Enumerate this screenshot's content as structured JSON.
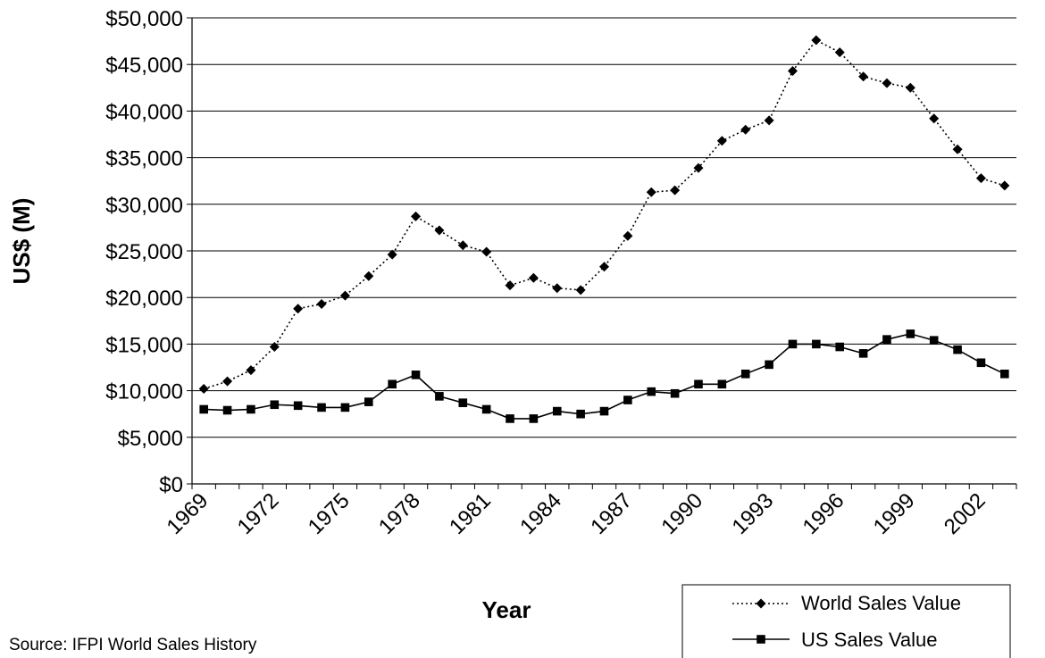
{
  "chart_data": {
    "type": "line",
    "title": "",
    "xlabel": "Year",
    "ylabel": "US$ (M)",
    "ylim": [
      0,
      50000
    ],
    "y_tick_step": 5000,
    "y_tick_labels": [
      "$0",
      "$5,000",
      "$10,000",
      "$15,000",
      "$20,000",
      "$25,000",
      "$30,000",
      "$35,000",
      "$40,000",
      "$45,000",
      "$50,000"
    ],
    "x_tick_labels": [
      "1969",
      "1972",
      "1975",
      "1978",
      "1981",
      "1984",
      "1987",
      "1990",
      "1993",
      "1996",
      "1999",
      "2002"
    ],
    "x": [
      1969,
      1970,
      1971,
      1972,
      1973,
      1974,
      1975,
      1976,
      1977,
      1978,
      1979,
      1980,
      1981,
      1982,
      1983,
      1984,
      1985,
      1986,
      1987,
      1988,
      1989,
      1990,
      1991,
      1992,
      1993,
      1994,
      1995,
      1996,
      1997,
      1998,
      1999,
      2000,
      2001,
      2002,
      2003
    ],
    "series": [
      {
        "name": "World Sales Value",
        "line_style": "dotted",
        "marker": "diamond",
        "color": "#000000",
        "values": [
          10200,
          11000,
          12200,
          14700,
          18800,
          19300,
          20200,
          22300,
          24600,
          28700,
          27200,
          25600,
          24900,
          21300,
          22100,
          21000,
          20800,
          23300,
          26600,
          31300,
          31500,
          33900,
          36800,
          38000,
          39000,
          44300,
          47600,
          46300,
          43700,
          43000,
          42500,
          39200,
          35900,
          32800,
          32000
        ]
      },
      {
        "name": "US Sales Value",
        "line_style": "solid",
        "marker": "square",
        "color": "#000000",
        "values": [
          8000,
          7900,
          8000,
          8500,
          8400,
          8200,
          8200,
          8800,
          10700,
          11700,
          9400,
          8700,
          8000,
          7000,
          7000,
          7800,
          7500,
          7800,
          9000,
          9900,
          9700,
          10700,
          10700,
          11800,
          12800,
          15000,
          15000,
          14700,
          14000,
          15500,
          16100,
          15400,
          14400,
          13000,
          11800
        ]
      }
    ],
    "grid": "horizontal",
    "legend_position": "bottom-right",
    "source": "Source: IFPI World Sales History"
  }
}
